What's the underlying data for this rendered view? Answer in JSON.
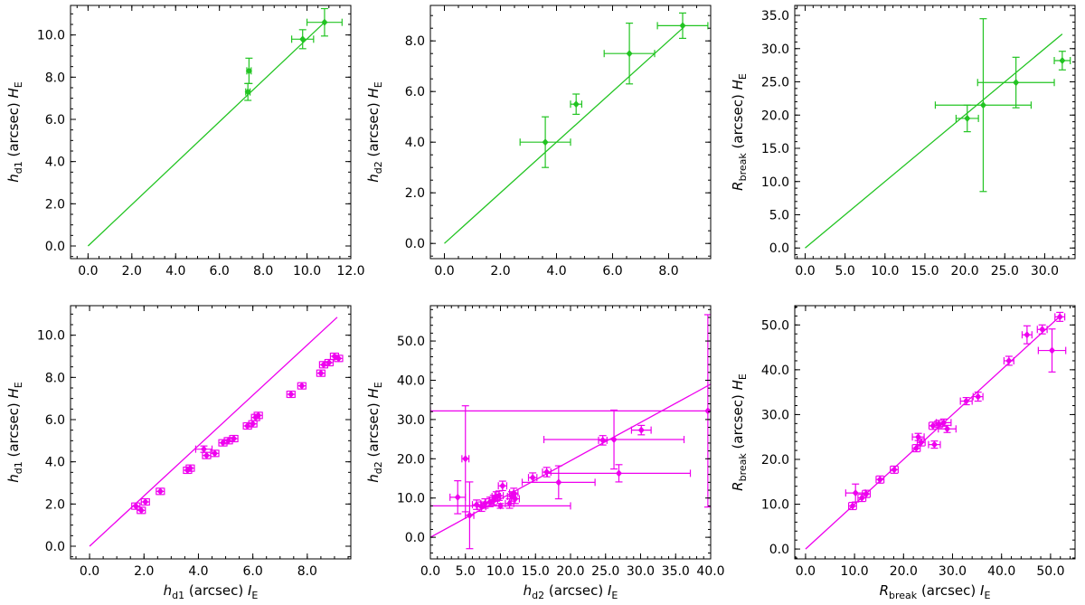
{
  "colors": {
    "green": "#22c422",
    "magenta": "#ee00ee",
    "axis": "#000000"
  },
  "chart_data": [
    {
      "id": "p1",
      "type": "scatter",
      "color_key": "green",
      "xlabel": {
        "sym": "",
        "sub": "",
        "unit": "",
        "band": ""
      },
      "ylabel": {
        "sym": "h",
        "sub": "d1",
        "unit": " (arcsec) ",
        "band": "H"
      },
      "xlim": [
        -0.8,
        12.0
      ],
      "ylim": [
        -0.6,
        11.4
      ],
      "xticks": [
        0,
        2,
        4,
        6,
        8,
        10,
        12
      ],
      "xticklabels": [
        "0.0",
        "2.0",
        "4.0",
        "6.0",
        "8.0",
        "10.0",
        "12.0"
      ],
      "yticks": [
        0,
        2,
        4,
        6,
        8,
        10
      ],
      "yticklabels": [
        "0.0",
        "2.0",
        "4.0",
        "6.0",
        "8.0",
        "10.0"
      ],
      "xminor": 0.5,
      "yminor": 0.5,
      "line": [
        [
          0,
          0
        ],
        [
          10.8,
          10.6
        ]
      ],
      "points": [
        {
          "x": 7.3,
          "y": 7.3,
          "xerr": 0.1,
          "yerr": 0.4
        },
        {
          "x": 7.35,
          "y": 8.3,
          "xerr": 0.1,
          "yerr": 0.6
        },
        {
          "x": 9.8,
          "y": 9.8,
          "xerr": 0.5,
          "yerr": 0.45
        },
        {
          "x": 10.8,
          "y": 10.6,
          "xerr": 0.8,
          "yerr": 0.65
        }
      ]
    },
    {
      "id": "p2",
      "type": "scatter",
      "color_key": "green",
      "xlabel": {
        "sym": "",
        "sub": "",
        "unit": "",
        "band": ""
      },
      "ylabel": {
        "sym": "h",
        "sub": "d2",
        "unit": " (arcsec) ",
        "band": "H"
      },
      "xlim": [
        -0.5,
        9.5
      ],
      "ylim": [
        -0.6,
        9.4
      ],
      "xticks": [
        0,
        2,
        4,
        6,
        8
      ],
      "xticklabels": [
        "0.0",
        "2.0",
        "4.0",
        "6.0",
        "8.0"
      ],
      "yticks": [
        0,
        2,
        4,
        6,
        8
      ],
      "yticklabels": [
        "0.0",
        "2.0",
        "4.0",
        "6.0",
        "8.0"
      ],
      "xminor": 0.5,
      "yminor": 0.5,
      "line": [
        [
          0,
          0
        ],
        [
          8.5,
          8.5
        ]
      ],
      "points": [
        {
          "x": 3.6,
          "y": 4.0,
          "xerr": 0.9,
          "yerr": 1.0
        },
        {
          "x": 4.7,
          "y": 5.5,
          "xerr": 0.2,
          "yerr": 0.4
        },
        {
          "x": 6.6,
          "y": 7.5,
          "xerr": 0.9,
          "yerr": 1.2
        },
        {
          "x": 8.5,
          "y": 8.6,
          "xerr": 0.9,
          "yerr": 0.5
        }
      ]
    },
    {
      "id": "p3",
      "type": "scatter",
      "color_key": "green",
      "xlabel": {
        "sym": "",
        "sub": "",
        "unit": "",
        "band": ""
      },
      "ylabel": {
        "sym": "R",
        "sub": "break",
        "unit": " (arcsec) ",
        "band": "H"
      },
      "xlim": [
        -1.3,
        33.8
      ],
      "ylim": [
        -1.6,
        36.5
      ],
      "xticks": [
        0,
        5,
        10,
        15,
        20,
        25,
        30
      ],
      "xticklabels": [
        "0.0",
        "5.0",
        "10.0",
        "15.0",
        "20.0",
        "25.0",
        "30.0"
      ],
      "yticks": [
        0,
        5,
        10,
        15,
        20,
        25,
        30,
        35
      ],
      "yticklabels": [
        "0.0",
        "5.0",
        "10.0",
        "15.0",
        "20.0",
        "25.0",
        "30.0",
        "35.0"
      ],
      "xminor": 1,
      "yminor": 1,
      "line": [
        [
          0,
          0
        ],
        [
          32.2,
          32.2
        ]
      ],
      "points": [
        {
          "x": 20.3,
          "y": 19.5,
          "xerr": 1.4,
          "yerr": 2.0
        },
        {
          "x": 22.3,
          "y": 21.5,
          "xerr": 6.0,
          "yerr": 13.0
        },
        {
          "x": 26.4,
          "y": 24.9,
          "xerr": 4.8,
          "yerr": 3.8
        },
        {
          "x": 32.2,
          "y": 28.2,
          "xerr": 1.0,
          "yerr": 1.4
        }
      ]
    },
    {
      "id": "p4",
      "type": "scatter",
      "color_key": "magenta",
      "xlabel": {
        "sym": "h",
        "sub": "d1",
        "unit": " (arcsec) ",
        "band": "I"
      },
      "ylabel": {
        "sym": "h",
        "sub": "d1",
        "unit": " (arcsec) ",
        "band": "H"
      },
      "xlim": [
        -0.7,
        9.6
      ],
      "ylim": [
        -0.6,
        11.4
      ],
      "xticks": [
        0,
        2,
        4,
        6,
        8
      ],
      "xticklabels": [
        "0.0",
        "2.0",
        "4.0",
        "6.0",
        "8.0"
      ],
      "yticks": [
        0,
        2,
        4,
        6,
        8,
        10
      ],
      "yticklabels": [
        "0.0",
        "2.0",
        "4.0",
        "6.0",
        "8.0",
        "10.0"
      ],
      "xminor": 0.5,
      "yminor": 0.5,
      "line": [
        [
          0,
          0
        ],
        [
          9.1,
          10.85
        ]
      ],
      "points": [
        {
          "x": 1.7,
          "y": 1.9,
          "xerr": 0.15,
          "yerr": 0.15
        },
        {
          "x": 1.9,
          "y": 1.7,
          "xerr": 0.15,
          "yerr": 0.15
        },
        {
          "x": 2.05,
          "y": 2.1,
          "xerr": 0.15,
          "yerr": 0.15
        },
        {
          "x": 2.6,
          "y": 2.6,
          "xerr": 0.15,
          "yerr": 0.15
        },
        {
          "x": 3.6,
          "y": 3.6,
          "xerr": 0.15,
          "yerr": 0.15
        },
        {
          "x": 3.7,
          "y": 3.7,
          "xerr": 0.15,
          "yerr": 0.15
        },
        {
          "x": 4.2,
          "y": 4.6,
          "xerr": 0.3,
          "yerr": 0.15
        },
        {
          "x": 4.3,
          "y": 4.3,
          "xerr": 0.15,
          "yerr": 0.15
        },
        {
          "x": 4.6,
          "y": 4.4,
          "xerr": 0.15,
          "yerr": 0.15
        },
        {
          "x": 4.9,
          "y": 4.9,
          "xerr": 0.15,
          "yerr": 0.15
        },
        {
          "x": 5.1,
          "y": 5.0,
          "xerr": 0.15,
          "yerr": 0.15
        },
        {
          "x": 5.3,
          "y": 5.1,
          "xerr": 0.15,
          "yerr": 0.15
        },
        {
          "x": 5.8,
          "y": 5.7,
          "xerr": 0.15,
          "yerr": 0.15
        },
        {
          "x": 6.0,
          "y": 5.8,
          "xerr": 0.15,
          "yerr": 0.15
        },
        {
          "x": 6.1,
          "y": 6.1,
          "xerr": 0.15,
          "yerr": 0.15
        },
        {
          "x": 6.2,
          "y": 6.2,
          "xerr": 0.15,
          "yerr": 0.15
        },
        {
          "x": 7.4,
          "y": 7.2,
          "xerr": 0.15,
          "yerr": 0.15
        },
        {
          "x": 7.8,
          "y": 7.6,
          "xerr": 0.15,
          "yerr": 0.15
        },
        {
          "x": 8.5,
          "y": 8.2,
          "xerr": 0.15,
          "yerr": 0.15
        },
        {
          "x": 8.6,
          "y": 8.6,
          "xerr": 0.15,
          "yerr": 0.15
        },
        {
          "x": 8.8,
          "y": 8.7,
          "xerr": 0.15,
          "yerr": 0.15
        },
        {
          "x": 9.0,
          "y": 9.0,
          "xerr": 0.15,
          "yerr": 0.15
        },
        {
          "x": 9.15,
          "y": 8.9,
          "xerr": 0.15,
          "yerr": 0.15
        }
      ]
    },
    {
      "id": "p5",
      "type": "scatter",
      "color_key": "magenta",
      "xlabel": {
        "sym": "h",
        "sub": "d2",
        "unit": " (arcsec) ",
        "band": "I"
      },
      "ylabel": {
        "sym": "h",
        "sub": "d2",
        "unit": " (arcsec) ",
        "band": "H"
      },
      "xlim": [
        0.0,
        40.0
      ],
      "ylim": [
        -5.5,
        59.0
      ],
      "xticks": [
        0,
        5,
        10,
        15,
        20,
        25,
        30,
        35,
        40
      ],
      "xticklabels": [
        "0.0",
        "5.0",
        "10.0",
        "15.0",
        "20.0",
        "25.0",
        "30.0",
        "35.0",
        "40.0"
      ],
      "yticks": [
        0,
        10,
        20,
        30,
        40,
        50
      ],
      "yticklabels": [
        "0.0",
        "10.0",
        "20.0",
        "30.0",
        "40.0",
        "50.0"
      ],
      "xminor": 1,
      "yminor": 2,
      "line": [
        [
          0,
          0
        ],
        [
          40,
          39.0
        ]
      ],
      "points": [
        {
          "x": 3.9,
          "y": 10.2,
          "xerr": 1.1,
          "yerr": 4.2
        },
        {
          "x": 5.0,
          "y": 20.0,
          "xerr": 0.5,
          "yerr": 13.5
        },
        {
          "x": 5.6,
          "y": 5.6,
          "xerr": 0.6,
          "yerr": 8.5
        },
        {
          "x": 6.6,
          "y": 8.3,
          "xerr": 0.6,
          "yerr": 1.2
        },
        {
          "x": 7.3,
          "y": 7.8,
          "xerr": 0.6,
          "yerr": 1.2
        },
        {
          "x": 7.8,
          "y": 8.6,
          "xerr": 0.6,
          "yerr": 1.2
        },
        {
          "x": 8.5,
          "y": 9.0,
          "xerr": 0.6,
          "yerr": 1.2
        },
        {
          "x": 9.0,
          "y": 9.5,
          "xerr": 0.6,
          "yerr": 1.2
        },
        {
          "x": 9.4,
          "y": 10.4,
          "xerr": 0.6,
          "yerr": 1.2
        },
        {
          "x": 9.8,
          "y": 10.6,
          "xerr": 0.6,
          "yerr": 1.2
        },
        {
          "x": 10.0,
          "y": 8.0,
          "xerr": 10.0,
          "yerr": 0.6
        },
        {
          "x": 10.3,
          "y": 13.1,
          "xerr": 0.6,
          "yerr": 1.2
        },
        {
          "x": 11.3,
          "y": 8.6,
          "xerr": 0.6,
          "yerr": 1.2
        },
        {
          "x": 11.6,
          "y": 10.4,
          "xerr": 0.6,
          "yerr": 1.2
        },
        {
          "x": 11.9,
          "y": 11.3,
          "xerr": 0.6,
          "yerr": 1.2
        },
        {
          "x": 12.1,
          "y": 9.8,
          "xerr": 0.6,
          "yerr": 1.2
        },
        {
          "x": 14.6,
          "y": 15.2,
          "xerr": 0.6,
          "yerr": 1.2
        },
        {
          "x": 16.6,
          "y": 16.6,
          "xerr": 0.6,
          "yerr": 1.2
        },
        {
          "x": 18.3,
          "y": 14.0,
          "xerr": 5.2,
          "yerr": 4.2
        },
        {
          "x": 24.6,
          "y": 24.7,
          "xerr": 0.6,
          "yerr": 1.2
        },
        {
          "x": 26.2,
          "y": 24.9,
          "xerr": 10.0,
          "yerr": 7.5
        },
        {
          "x": 26.9,
          "y": 16.3,
          "xerr": 10.2,
          "yerr": 2.2
        },
        {
          "x": 30.1,
          "y": 27.3,
          "xerr": 1.4,
          "yerr": 1.2
        },
        {
          "x": 39.6,
          "y": 32.2,
          "xerr": 39.6,
          "yerr": 24.5
        }
      ]
    },
    {
      "id": "p6",
      "type": "scatter",
      "color_key": "magenta",
      "xlabel": {
        "sym": "R",
        "sub": "break",
        "unit": " (arcsec) ",
        "band": "I"
      },
      "ylabel": {
        "sym": "R",
        "sub": "break",
        "unit": " (arcsec) ",
        "band": "H"
      },
      "xlim": [
        -2.2,
        55.0
      ],
      "ylim": [
        -2.2,
        54.3
      ],
      "xticks": [
        0,
        10,
        20,
        30,
        40,
        50
      ],
      "xticklabels": [
        "0.0",
        "10.0",
        "20.0",
        "30.0",
        "40.0",
        "50.0"
      ],
      "yticks": [
        0,
        10,
        20,
        30,
        40,
        50
      ],
      "yticklabels": [
        "0.0",
        "10.0",
        "20.0",
        "30.0",
        "40.0",
        "50.0"
      ],
      "xminor": 2,
      "yminor": 2,
      "line": [
        [
          0,
          0
        ],
        [
          52.0,
          52.0
        ]
      ],
      "points": [
        {
          "x": 9.6,
          "y": 9.6,
          "xerr": 0.8,
          "yerr": 0.8
        },
        {
          "x": 10.2,
          "y": 12.5,
          "xerr": 2.0,
          "yerr": 2.0
        },
        {
          "x": 11.5,
          "y": 11.4,
          "xerr": 0.8,
          "yerr": 0.8
        },
        {
          "x": 12.4,
          "y": 12.3,
          "xerr": 0.8,
          "yerr": 0.8
        },
        {
          "x": 15.2,
          "y": 15.5,
          "xerr": 0.8,
          "yerr": 0.8
        },
        {
          "x": 18.1,
          "y": 17.7,
          "xerr": 0.8,
          "yerr": 0.8
        },
        {
          "x": 22.6,
          "y": 22.5,
          "xerr": 0.8,
          "yerr": 0.8
        },
        {
          "x": 23.0,
          "y": 25.0,
          "xerr": 1.2,
          "yerr": 0.8
        },
        {
          "x": 23.6,
          "y": 23.8,
          "xerr": 0.8,
          "yerr": 0.8
        },
        {
          "x": 26.0,
          "y": 27.5,
          "xerr": 0.8,
          "yerr": 0.8
        },
        {
          "x": 26.3,
          "y": 23.3,
          "xerr": 1.2,
          "yerr": 0.8
        },
        {
          "x": 27.2,
          "y": 27.9,
          "xerr": 0.8,
          "yerr": 0.8
        },
        {
          "x": 28.2,
          "y": 28.2,
          "xerr": 1.5,
          "yerr": 0.8
        },
        {
          "x": 28.9,
          "y": 26.8,
          "xerr": 1.8,
          "yerr": 0.8
        },
        {
          "x": 32.8,
          "y": 33.0,
          "xerr": 1.2,
          "yerr": 0.8
        },
        {
          "x": 35.2,
          "y": 34.0,
          "xerr": 1.0,
          "yerr": 1.0
        },
        {
          "x": 41.5,
          "y": 42.0,
          "xerr": 1.0,
          "yerr": 1.0
        },
        {
          "x": 45.2,
          "y": 47.8,
          "xerr": 1.0,
          "yerr": 2.0
        },
        {
          "x": 48.3,
          "y": 49.0,
          "xerr": 1.0,
          "yerr": 1.0
        },
        {
          "x": 50.3,
          "y": 44.3,
          "xerr": 2.8,
          "yerr": 4.8
        },
        {
          "x": 51.9,
          "y": 51.8,
          "xerr": 1.0,
          "yerr": 1.0
        }
      ]
    }
  ]
}
